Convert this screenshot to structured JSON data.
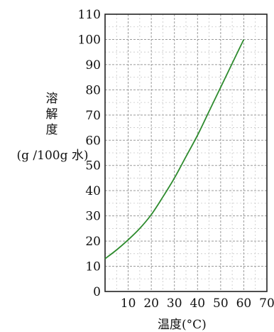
{
  "chart_data": {
    "type": "line",
    "title": "",
    "ylabel_chars": [
      "溶",
      "解",
      "度"
    ],
    "yunit": "(g /100g 水)",
    "xlabel": "温度(°C)",
    "xlim": [
      0,
      70
    ],
    "ylim": [
      0,
      110
    ],
    "x_ticks": [
      10,
      20,
      30,
      40,
      50,
      60,
      70
    ],
    "y_ticks": [
      0,
      10,
      20,
      30,
      40,
      50,
      60,
      70,
      80,
      90,
      100,
      110
    ],
    "grid": true,
    "line_color": "#2e8b2e",
    "series": [
      {
        "x": [
          0,
          5,
          10,
          15,
          20,
          25,
          30,
          35,
          40,
          45,
          50,
          55,
          60
        ],
        "values": [
          13,
          16.5,
          20.5,
          25,
          30.5,
          37.5,
          45,
          53.5,
          62,
          71.5,
          81,
          90.5,
          100
        ]
      }
    ]
  }
}
